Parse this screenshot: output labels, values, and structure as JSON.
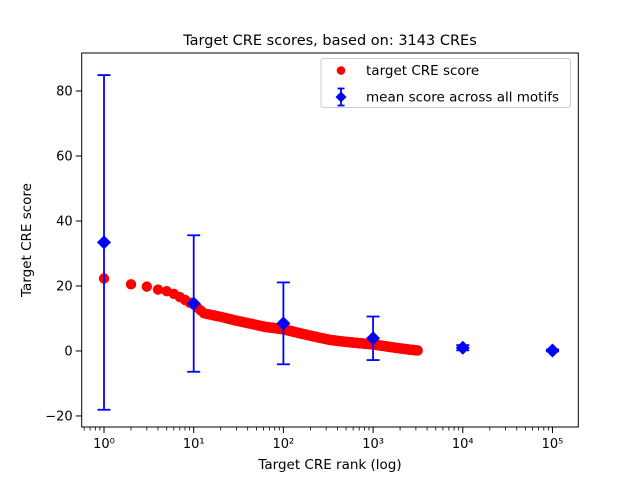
{
  "figure": {
    "background": "#ffffff"
  },
  "legend": {
    "items": [
      {
        "label": "target CRE score",
        "marker": "red-circle",
        "color": "#ff0000"
      },
      {
        "label": "mean score across all motifs",
        "marker": "blue-diamond-with-errorbar",
        "color": "#0000ff"
      }
    ],
    "border_color": "#cccccc",
    "position": "upper right"
  },
  "colors": {
    "target_series": "#ff0000",
    "mean_series": "#0000ff",
    "axis": "#000000",
    "background": "#ffffff",
    "legend_border": "#cccccc"
  },
  "chart_data": {
    "type": "scatter",
    "title": "Target CRE scores, based on: 3143 CREs",
    "xlabel": "Target CRE rank (log)",
    "ylabel": "Target CRE score",
    "x_scale": "log",
    "y_scale": "linear",
    "xlim": [
      0.56,
      194000
    ],
    "ylim": [
      -23.4,
      91.7
    ],
    "grid": false,
    "n_cres": 3143,
    "x_ticks": [
      {
        "value": 1,
        "label": "10⁰"
      },
      {
        "value": 10,
        "label": "10¹"
      },
      {
        "value": 100,
        "label": "10²"
      },
      {
        "value": 1000,
        "label": "10³"
      },
      {
        "value": 10000,
        "label": "10⁴"
      },
      {
        "value": 100000,
        "label": "10⁵"
      }
    ],
    "y_ticks": [
      {
        "value": -20,
        "label": "−20"
      },
      {
        "value": 0,
        "label": "0"
      },
      {
        "value": 20,
        "label": "20"
      },
      {
        "value": 40,
        "label": "40"
      },
      {
        "value": 60,
        "label": "60"
      },
      {
        "value": 80,
        "label": "80"
      }
    ],
    "series": [
      {
        "name": "target CRE score",
        "type": "scatter",
        "marker": "circle",
        "color": "#ff0000",
        "rank_range": [
          1,
          3143
        ],
        "anchors": [
          [
            1,
            22.3
          ],
          [
            2,
            20.5
          ],
          [
            3,
            19.8
          ],
          [
            4,
            18.9
          ],
          [
            5,
            18.4
          ],
          [
            6,
            17.6
          ],
          [
            7,
            16.6
          ],
          [
            8,
            15.7
          ],
          [
            9,
            14.9
          ],
          [
            10,
            14.3
          ],
          [
            13,
            11.6
          ],
          [
            20,
            10.5
          ],
          [
            29,
            9.4
          ],
          [
            43,
            8.4
          ],
          [
            63,
            7.4
          ],
          [
            100,
            6.7
          ],
          [
            155,
            5.4
          ],
          [
            224,
            4.4
          ],
          [
            331,
            3.4
          ],
          [
            500,
            2.8
          ],
          [
            708,
            2.4
          ],
          [
            1000,
            2.0
          ],
          [
            1259,
            1.6
          ],
          [
            1585,
            1.2
          ],
          [
            1995,
            0.8
          ],
          [
            2512,
            0.45
          ],
          [
            3143,
            0.15
          ]
        ]
      },
      {
        "name": "mean score across all motifs",
        "type": "errorbar",
        "marker": "diamond",
        "color": "#0000ff",
        "x": [
          1,
          10,
          100,
          1000,
          10000,
          100000
        ],
        "y": [
          33.4,
          14.6,
          8.5,
          3.9,
          1.0,
          0.15
        ],
        "yerr": [
          51.5,
          21.0,
          12.6,
          6.7,
          0.8,
          0.3
        ]
      }
    ]
  }
}
